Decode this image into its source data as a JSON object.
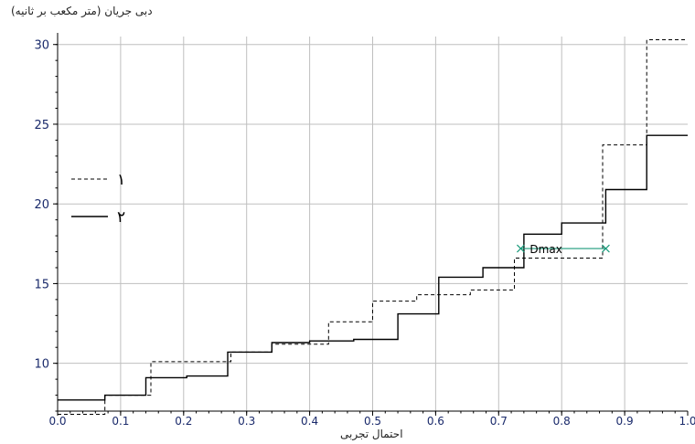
{
  "chart_data": {
    "type": "line",
    "title": "",
    "ylabel": "دبی جریان (متر مکعب بر ثانیه)",
    "xlabel": "احتمال تجربی",
    "xlim": [
      0,
      1
    ],
    "ylim": [
      7,
      30.5
    ],
    "x_ticks": [
      "0.0",
      "0.1",
      "0.2",
      "0.3",
      "0.4",
      "0.5",
      "0.6",
      "0.7",
      "0.8",
      "0.9",
      "1.0"
    ],
    "y_ticks": [
      {
        "value": 10,
        "label": "10"
      },
      {
        "value": 15,
        "label": "15"
      },
      {
        "value": 20,
        "label": "20"
      },
      {
        "value": 25,
        "label": "25"
      },
      {
        "value": 30,
        "label": "30"
      }
    ],
    "grid": true,
    "legend_position": "left",
    "series": [
      {
        "name": "۱",
        "style": "dashed",
        "color": "#000000",
        "steps": [
          [
            0.0,
            6.8
          ],
          [
            0.075,
            6.8
          ],
          [
            0.075,
            8.0
          ],
          [
            0.148,
            8.0
          ],
          [
            0.148,
            10.1
          ],
          [
            0.275,
            10.1
          ],
          [
            0.275,
            10.7
          ],
          [
            0.34,
            10.7
          ],
          [
            0.34,
            11.2
          ],
          [
            0.43,
            11.2
          ],
          [
            0.43,
            12.6
          ],
          [
            0.5,
            12.6
          ],
          [
            0.5,
            13.9
          ],
          [
            0.57,
            13.9
          ],
          [
            0.57,
            14.3
          ],
          [
            0.655,
            14.3
          ],
          [
            0.655,
            14.6
          ],
          [
            0.725,
            14.6
          ],
          [
            0.725,
            16.6
          ],
          [
            0.865,
            16.6
          ],
          [
            0.865,
            23.7
          ],
          [
            0.935,
            23.7
          ],
          [
            0.935,
            30.3
          ],
          [
            1.0,
            30.3
          ]
        ]
      },
      {
        "name": "۲",
        "style": "solid",
        "color": "#000000",
        "steps": [
          [
            0.0,
            7.7
          ],
          [
            0.075,
            7.7
          ],
          [
            0.075,
            8.0
          ],
          [
            0.14,
            8.0
          ],
          [
            0.14,
            9.1
          ],
          [
            0.205,
            9.1
          ],
          [
            0.205,
            9.2
          ],
          [
            0.27,
            9.2
          ],
          [
            0.27,
            10.7
          ],
          [
            0.34,
            10.7
          ],
          [
            0.34,
            11.3
          ],
          [
            0.4,
            11.3
          ],
          [
            0.4,
            11.4
          ],
          [
            0.47,
            11.4
          ],
          [
            0.47,
            11.5
          ],
          [
            0.54,
            11.5
          ],
          [
            0.54,
            13.1
          ],
          [
            0.605,
            13.1
          ],
          [
            0.605,
            15.4
          ],
          [
            0.675,
            15.4
          ],
          [
            0.675,
            16.0
          ],
          [
            0.74,
            16.0
          ],
          [
            0.74,
            18.1
          ],
          [
            0.8,
            18.1
          ],
          [
            0.8,
            18.8
          ],
          [
            0.87,
            18.8
          ],
          [
            0.87,
            20.9
          ],
          [
            0.935,
            20.9
          ],
          [
            0.935,
            24.3
          ],
          [
            1.0,
            24.3
          ]
        ]
      }
    ],
    "annotation": {
      "label": "Dmax",
      "y": 17.2,
      "x_start": 0.735,
      "x_end": 0.87,
      "color": "#1a9a7a"
    }
  }
}
